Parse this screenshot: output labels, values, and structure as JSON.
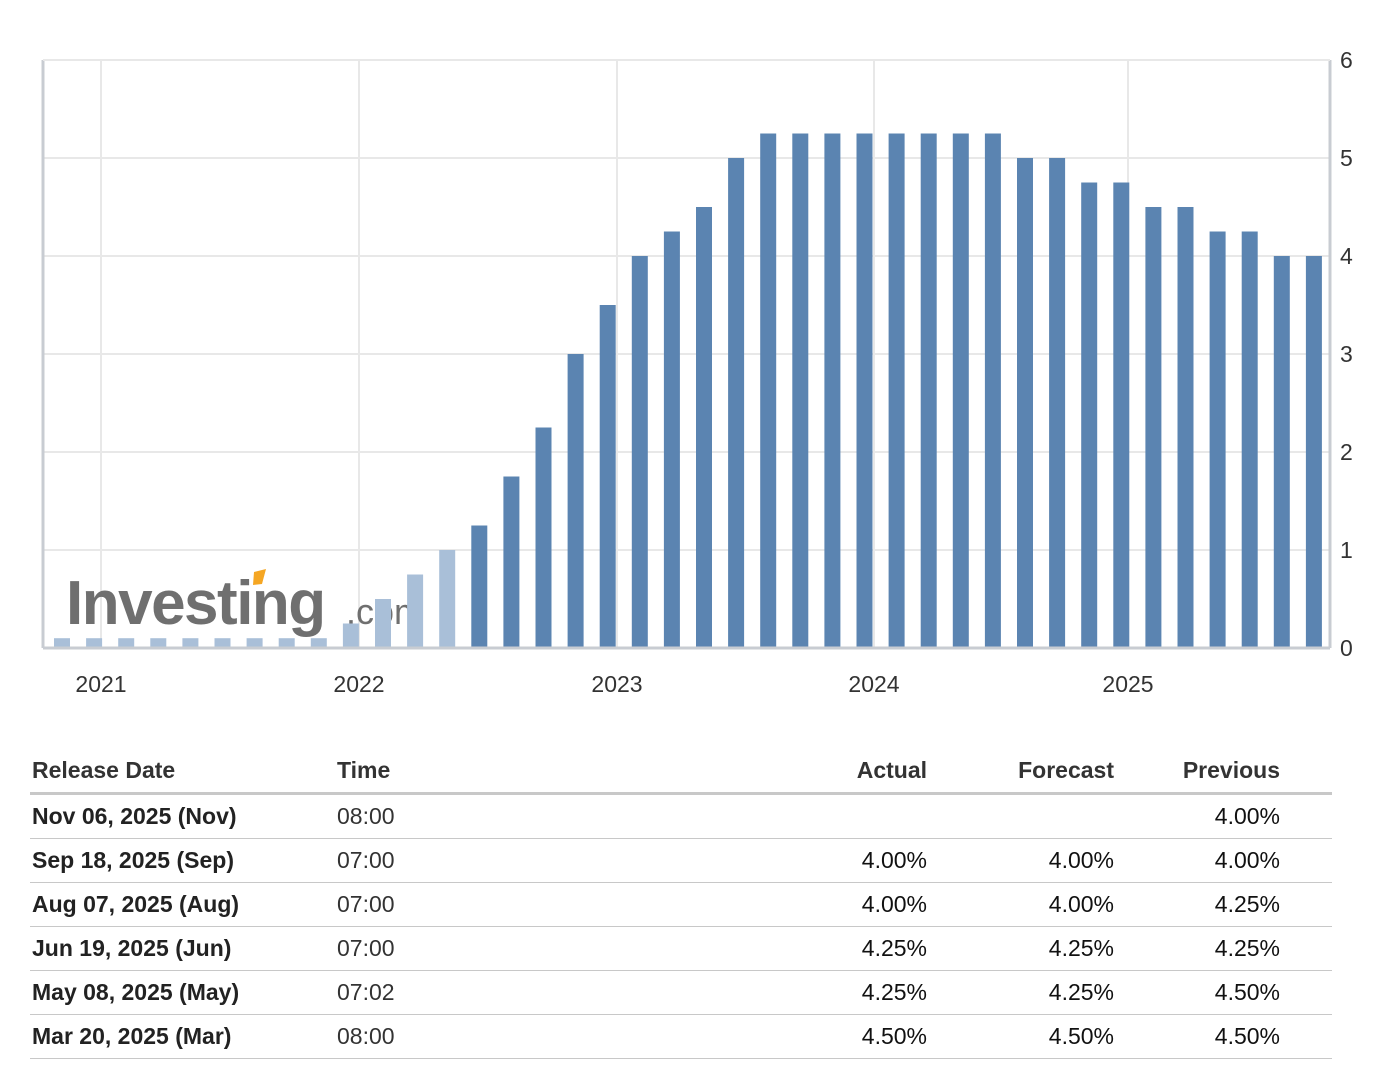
{
  "chart_data": {
    "type": "bar",
    "x_tick_labels": [
      "2021",
      "2022",
      "2023",
      "2024",
      "2025"
    ],
    "y_ticks": [
      0,
      1,
      2,
      3,
      4,
      5,
      6
    ],
    "ylim": [
      0,
      6
    ],
    "grid": true,
    "y_axis_side": "right",
    "values": [
      0.1,
      0.1,
      0.1,
      0.1,
      0.1,
      0.1,
      0.1,
      0.1,
      0.1,
      0.25,
      0.5,
      0.75,
      1.0,
      1.25,
      1.75,
      2.25,
      3.0,
      3.5,
      4.0,
      4.25,
      4.5,
      5.0,
      5.25,
      5.25,
      5.25,
      5.25,
      5.25,
      5.25,
      5.25,
      5.25,
      5.0,
      5.0,
      4.75,
      4.75,
      4.5,
      4.5,
      4.25,
      4.25,
      4.0,
      4.0
    ],
    "highlighted_from_index": 13,
    "colors": {
      "bar": "#5b84b1",
      "bar_light": "#a9bfd8",
      "grid": "#e8e8e8",
      "axis": "#c8ccd2"
    },
    "watermark": {
      "brand": "Investing",
      "suffix": ".com",
      "accent": "#f5a623"
    }
  },
  "table": {
    "headers": {
      "release_date": "Release Date",
      "time": "Time",
      "actual": "Actual",
      "forecast": "Forecast",
      "previous": "Previous"
    },
    "rows": [
      {
        "date": "Nov 06, 2025 (Nov)",
        "time": "08:00",
        "actual": "",
        "forecast": "",
        "previous": "4.00%"
      },
      {
        "date": "Sep 18, 2025 (Sep)",
        "time": "07:00",
        "actual": "4.00%",
        "forecast": "4.00%",
        "previous": "4.00%"
      },
      {
        "date": "Aug 07, 2025 (Aug)",
        "time": "07:00",
        "actual": "4.00%",
        "forecast": "4.00%",
        "previous": "4.25%"
      },
      {
        "date": "Jun 19, 2025 (Jun)",
        "time": "07:00",
        "actual": "4.25%",
        "forecast": "4.25%",
        "previous": "4.25%"
      },
      {
        "date": "May 08, 2025 (May)",
        "time": "07:02",
        "actual": "4.25%",
        "forecast": "4.25%",
        "previous": "4.50%"
      },
      {
        "date": "Mar 20, 2025 (Mar)",
        "time": "08:00",
        "actual": "4.50%",
        "forecast": "4.50%",
        "previous": "4.50%"
      }
    ]
  }
}
